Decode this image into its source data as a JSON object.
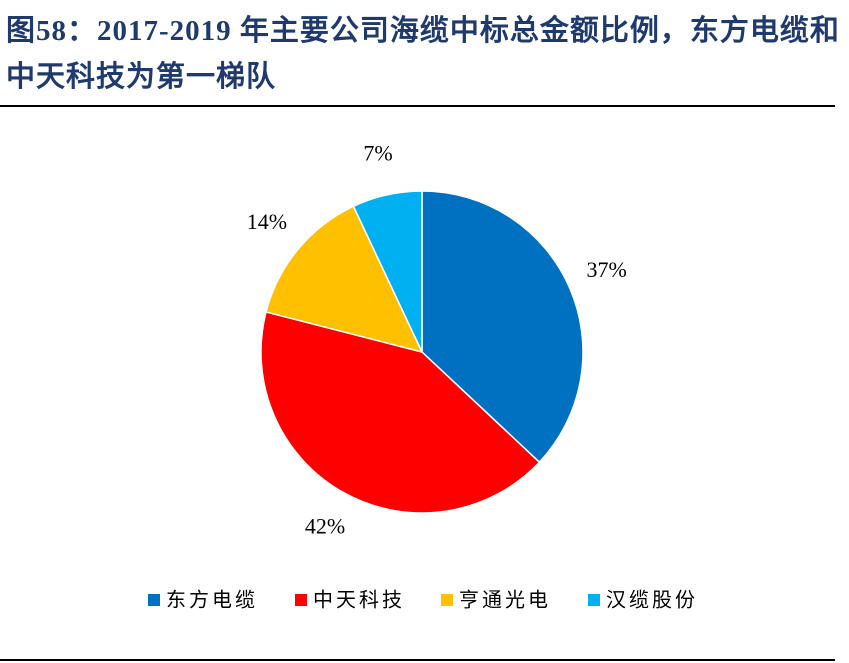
{
  "chart_data": {
    "type": "pie",
    "title": "图58：2017-2019 年主要公司海缆中标总金额比例，东方电缆和中天科技为第一梯队",
    "categories": [
      "东方电缆",
      "中天科技",
      "亨通光电",
      "汉缆股份"
    ],
    "values": [
      37,
      42,
      14,
      7
    ],
    "value_labels": [
      "37%",
      "42%",
      "14%",
      "7%"
    ],
    "colors": [
      "#0070C0",
      "#FF0000",
      "#FFC000",
      "#00B0F0"
    ],
    "legend": "bottom"
  }
}
